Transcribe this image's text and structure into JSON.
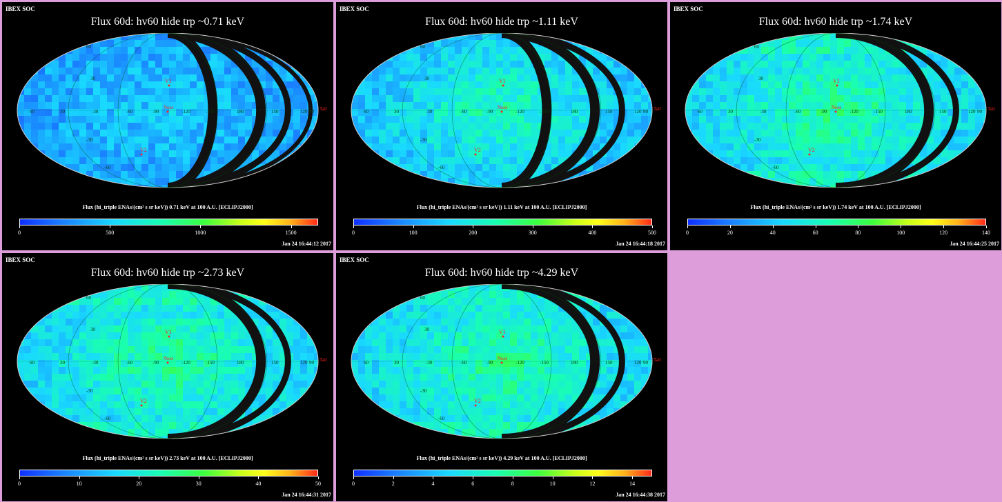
{
  "panels": [
    {
      "tag": "IBEX SOC",
      "title": "Flux   60d: hv60 hide trp ~0.71 keV",
      "caption": "Flux (hi_triple ENAs/(cm² s sr keV))  0.71 keV at 100 A.U. [ECLIPJ2000]",
      "colorbar_ticks": [
        "0",
        "500",
        "1000",
        "1500"
      ],
      "colorbar_max": 1650,
      "timestamp": "Jan 24 16:44:12 2017",
      "mean_level": 0.28,
      "gaps": 4
    },
    {
      "tag": "IBEX SOC",
      "title": "Flux   60d: hv60 hide trp ~1.11 keV",
      "caption": "Flux (hi_triple ENAs/(cm² s sr keV))  1.11 keV at 100 A.U. [ECLIPJ2000]",
      "colorbar_ticks": [
        "0",
        "100",
        "200",
        "300",
        "400",
        "500"
      ],
      "colorbar_max": 500,
      "timestamp": "Jan 24 16:44:18 2017",
      "mean_level": 0.36,
      "gaps": 3
    },
    {
      "tag": "IBEX SOC",
      "title": "Flux   60d: hv60 hide trp ~1.74 keV",
      "caption": "Flux (hi_triple ENAs/(cm² s sr keV))  1.74 keV at 100 A.U. [ECLIPJ2000]",
      "colorbar_ticks": [
        "0",
        "20",
        "40",
        "60",
        "80",
        "100",
        "120",
        "140"
      ],
      "colorbar_max": 140,
      "timestamp": "Jan 24 16:44:25 2017",
      "mean_level": 0.42,
      "gaps": 2
    },
    {
      "tag": "IBEX SOC",
      "title": "Flux   60d: hv60 hide trp ~2.73 keV",
      "caption": "Flux (hi_triple ENAs/(cm² s sr keV))  2.73 keV at 100 A.U. [ECLIPJ2000]",
      "colorbar_ticks": [
        "0",
        "10",
        "20",
        "30",
        "40",
        "50"
      ],
      "colorbar_max": 50,
      "timestamp": "Jan 24 16:44:31 2017",
      "mean_level": 0.42,
      "gaps": 2
    },
    {
      "tag": "IBEX SOC",
      "title": "Flux   60d: hv60 hide trp ~4.29 keV",
      "caption": "Flux (hi_triple ENAs/(cm² s sr keV))  4.29 keV at 100 A.U. [ECLIPJ2000]",
      "colorbar_ticks": [
        "0",
        "2",
        "4",
        "6",
        "8",
        "10",
        "12",
        "14"
      ],
      "colorbar_max": 15,
      "timestamp": "Jan 24 16:44:38 2017",
      "mean_level": 0.42,
      "gaps": 2
    }
  ],
  "map_labels": {
    "v1": "V1",
    "v2": "V2",
    "nose": "Nose",
    "tail": "Tail",
    "lon_labels": [
      "60",
      "30",
      "-30",
      "-60",
      "-90",
      "-120",
      "-150",
      "180",
      "150",
      "120",
      "90"
    ],
    "lat_labels": [
      "60",
      "30",
      "-30",
      "-60"
    ]
  },
  "colors": {
    "background_page": "#dd9ddb",
    "panel_bg": "#000000",
    "marker": "#ff2020",
    "grid_label": "#1a8a1a"
  }
}
